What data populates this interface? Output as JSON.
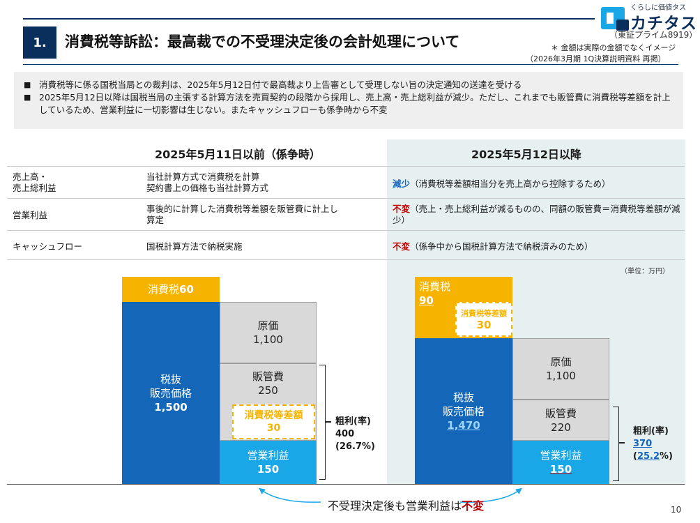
{
  "header": {
    "section_number": "1.",
    "title": "消費税等訴訟：最高裁での不受理決定後の会計処理について",
    "logo_tagline": "くらしに価値タス",
    "logo_name": "カチタス",
    "listing": "（東証プライム8919）",
    "note_amounts": "＊ 金額は実際の金額でなくイメージ",
    "note_source": "（2026年3月期 1Q決算説明資料 再掲）"
  },
  "summary": [
    "消費税等に係る国税当局との裁判は、2025年5月12日付で最高裁より上告審として受理しない旨の決定通知の送達を受ける",
    "2025年5月12日以降は国税当局の主張する計算方法を売買契約の段階から採用し、売上高・売上総利益が減少。ただし、これまでも販管費に消費税等差額を計上しているため、営業利益に一切影響は生じない。またキャッシュフローも係争時から不変"
  ],
  "table": {
    "before_header": "2025年5月11日以前（係争時）",
    "after_header": "2025年5月12日以降",
    "rows": [
      {
        "label_line1": "売上高・",
        "label_line2": "売上総利益",
        "before_line1": "当社計算方式で消費税を計算",
        "before_line2": "契約書上の価格も当社計算方式",
        "after_keyword": "減少",
        "after_text": "（消費税等差額相当分を売上高から控除するため）"
      },
      {
        "label_line1": "営業利益",
        "before_line1": "事後的に計算した消費税等差額を販管費に計上し",
        "before_line2": "算定",
        "after_keyword": "不変",
        "after_text": "（売上・売上総利益が減るものの、同額の販管費＝消費税等差額が減少）"
      },
      {
        "label_line1": "キャッシュフロー",
        "before_line1": "国税計算方法で納税実施",
        "after_keyword": "不変",
        "after_text": "（係争中から国税計算方法で納税済みのため）"
      }
    ]
  },
  "unit_note": "（単位：万円）",
  "chart_before": {
    "tax_label": "消費税",
    "tax_value": "60",
    "price_label_line1": "税抜",
    "price_label_line2": "販売価格",
    "price_value": "1,500",
    "cost_label": "原価",
    "cost_value": "1,100",
    "sga_label": "販管費",
    "sga_value": "250",
    "taxdiff_label": "消費税等差額",
    "taxdiff_value": "30",
    "op_label": "営業利益",
    "op_value": "150",
    "gross_label": "粗利(率)",
    "gross_value": "400",
    "gross_rate": "(26.7%)"
  },
  "chart_after": {
    "tax_label": "消費税",
    "tax_value": "90",
    "taxdiff_label": "消費税等差額",
    "taxdiff_value": "30",
    "price_label_line1": "税抜",
    "price_label_line2": "販売価格",
    "price_value": "1,470",
    "cost_label": "原価",
    "cost_value": "1,100",
    "sga_label": "販管費",
    "sga_value": "220",
    "op_label": "営業利益",
    "op_value": "150",
    "gross_label": "粗利(率)",
    "gross_value": "370",
    "gross_rate_open": "(",
    "gross_rate_num": "25.2",
    "gross_rate_close": "%)"
  },
  "footer": {
    "message_prefix": "不受理決定後も営業利益は",
    "message_emphasis": "不変",
    "page_number": "10"
  },
  "colors": {
    "navy": "#0a2f5c",
    "tax_orange": "#f6b400",
    "price_blue": "#1466b8",
    "op_sky": "#1aa7e8",
    "emphasis_red": "#c00000",
    "emphasis_blue": "#1565c0"
  }
}
